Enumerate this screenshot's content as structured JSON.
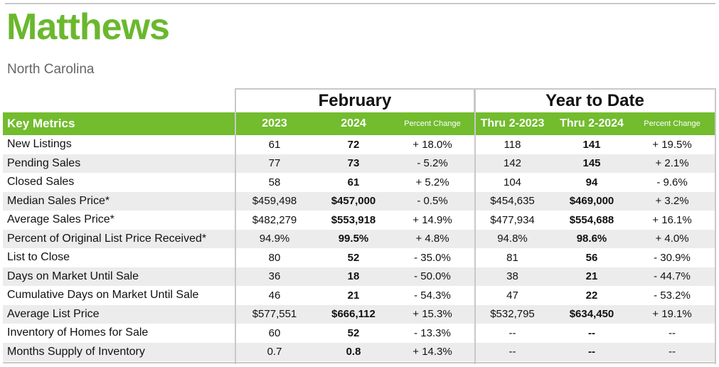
{
  "header": {
    "title": "Matthews",
    "subtitle": "North Carolina"
  },
  "groups": {
    "month": "February",
    "ytd": "Year to Date"
  },
  "columns": {
    "metric": "Key Metrics",
    "y1": "2023",
    "y2": "2024",
    "pct1": "Percent Change",
    "ytd1": "Thru 2-2023",
    "ytd2": "Thru 2-2024",
    "pct2": "Percent Change"
  },
  "rows": [
    {
      "metric": "New Listings",
      "y1": "61",
      "y2": "72",
      "pct1": "+ 18.0%",
      "ytd1": "118",
      "ytd2": "141",
      "pct2": "+ 19.5%"
    },
    {
      "metric": "Pending Sales",
      "y1": "77",
      "y2": "73",
      "pct1": "- 5.2%",
      "ytd1": "142",
      "ytd2": "145",
      "pct2": "+ 2.1%"
    },
    {
      "metric": "Closed Sales",
      "y1": "58",
      "y2": "61",
      "pct1": "+ 5.2%",
      "ytd1": "104",
      "ytd2": "94",
      "pct2": "- 9.6%"
    },
    {
      "metric": "Median Sales Price*",
      "y1": "$459,498",
      "y2": "$457,000",
      "pct1": "- 0.5%",
      "ytd1": "$454,635",
      "ytd2": "$469,000",
      "pct2": "+ 3.2%"
    },
    {
      "metric": "Average Sales Price*",
      "y1": "$482,279",
      "y2": "$553,918",
      "pct1": "+ 14.9%",
      "ytd1": "$477,934",
      "ytd2": "$554,688",
      "pct2": "+ 16.1%"
    },
    {
      "metric": "Percent of Original List Price Received*",
      "y1": "94.9%",
      "y2": "99.5%",
      "pct1": "+ 4.8%",
      "ytd1": "94.8%",
      "ytd2": "98.6%",
      "pct2": "+ 4.0%"
    },
    {
      "metric": "List to Close",
      "y1": "80",
      "y2": "52",
      "pct1": "- 35.0%",
      "ytd1": "81",
      "ytd2": "56",
      "pct2": "- 30.9%"
    },
    {
      "metric": "Days on Market Until Sale",
      "y1": "36",
      "y2": "18",
      "pct1": "- 50.0%",
      "ytd1": "38",
      "ytd2": "21",
      "pct2": "- 44.7%"
    },
    {
      "metric": "Cumulative Days on Market Until Sale",
      "y1": "46",
      "y2": "21",
      "pct1": "- 54.3%",
      "ytd1": "47",
      "ytd2": "22",
      "pct2": "- 53.2%"
    },
    {
      "metric": "Average List Price",
      "y1": "$577,551",
      "y2": "$666,112",
      "pct1": "+ 15.3%",
      "ytd1": "$532,795",
      "ytd2": "$634,450",
      "pct2": "+ 19.1%"
    },
    {
      "metric": "Inventory of Homes for Sale",
      "y1": "60",
      "y2": "52",
      "pct1": "- 13.3%",
      "ytd1": "--",
      "ytd2": "--",
      "pct2": "--"
    },
    {
      "metric": "Months Supply of Inventory",
      "y1": "0.7",
      "y2": "0.8",
      "pct1": "+ 14.3%",
      "ytd1": "--",
      "ytd2": "--",
      "pct2": "--"
    }
  ],
  "colors": {
    "title": "#6ab82e",
    "header_bg": "#72bc2e",
    "row_alt": "#ececec",
    "rule": "#c8c8c8"
  }
}
